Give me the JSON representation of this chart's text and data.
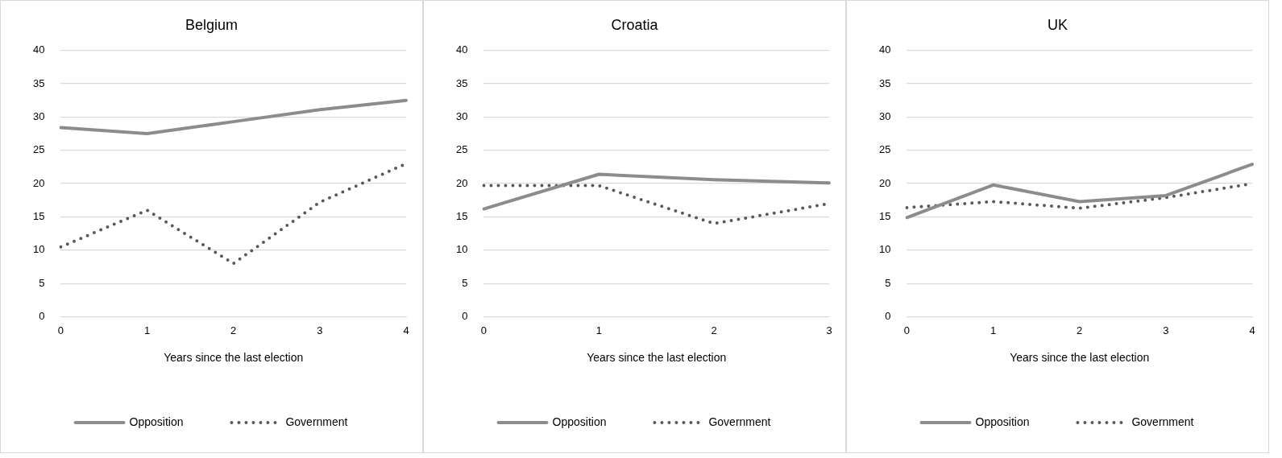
{
  "chart_data": [
    {
      "type": "line",
      "title": "Belgium",
      "xlabel": "Years since the last election",
      "categories": [
        "0",
        "1",
        "2",
        "3",
        "4"
      ],
      "ylim": [
        0,
        40
      ],
      "yticks": [
        0,
        5,
        10,
        15,
        20,
        25,
        30,
        35,
        40
      ],
      "grid": "y",
      "legend": "bottom",
      "marker": "none",
      "series": [
        {
          "name": "Opposition",
          "color": "#8c8c8c",
          "line_style": "solid",
          "values": [
            28.4,
            27.5,
            29.3,
            31.1,
            32.5
          ]
        },
        {
          "name": "Government",
          "color": "#595959",
          "line_style": "dotted",
          "values": [
            10.5,
            16,
            8,
            17.2,
            23
          ]
        }
      ]
    },
    {
      "type": "line",
      "title": "Croatia",
      "xlabel": "Years since the last election",
      "categories": [
        "0",
        "1",
        "2",
        "3"
      ],
      "ylim": [
        0,
        40
      ],
      "yticks": [
        0,
        5,
        10,
        15,
        20,
        25,
        30,
        35,
        40
      ],
      "grid": "y",
      "legend": "bottom",
      "marker": "none",
      "series": [
        {
          "name": "Opposition",
          "color": "#8c8c8c",
          "line_style": "solid",
          "values": [
            16.2,
            21.4,
            20.6,
            20.1
          ]
        },
        {
          "name": "Government",
          "color": "#595959",
          "line_style": "dotted",
          "values": [
            19.7,
            19.7,
            14,
            17
          ]
        }
      ]
    },
    {
      "type": "line",
      "title": "UK",
      "xlabel": "Years since the last election",
      "categories": [
        "0",
        "1",
        "2",
        "3",
        "4"
      ],
      "ylim": [
        0,
        40
      ],
      "yticks": [
        0,
        5,
        10,
        15,
        20,
        25,
        30,
        35,
        40
      ],
      "grid": "y",
      "legend": "bottom",
      "marker": "none",
      "series": [
        {
          "name": "Opposition",
          "color": "#8c8c8c",
          "line_style": "solid",
          "values": [
            14.9,
            19.8,
            17.3,
            18.2,
            22.9
          ]
        },
        {
          "name": "Government",
          "color": "#595959",
          "line_style": "dotted",
          "values": [
            16.4,
            17.3,
            16.3,
            17.9,
            20
          ]
        }
      ]
    }
  ]
}
